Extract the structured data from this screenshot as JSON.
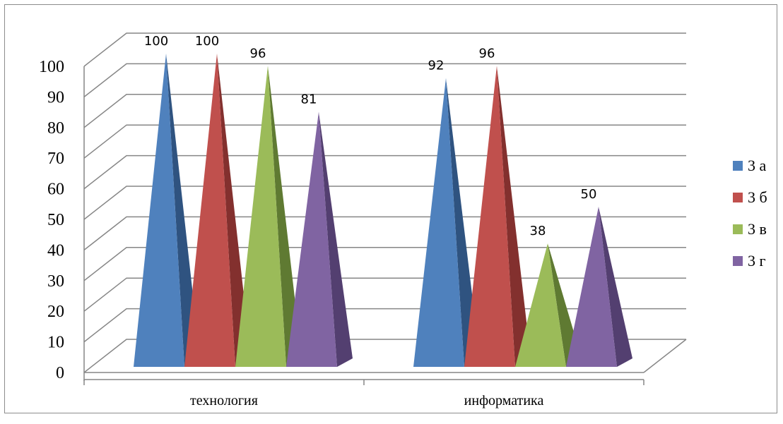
{
  "chart_data": {
    "type": "bar",
    "subtype": "3d-pyramid",
    "categories": [
      "технология",
      "информатика"
    ],
    "series": [
      {
        "name": "3 а",
        "values": [
          100,
          92
        ],
        "color": "#4f81bd",
        "shade": "#2f5380"
      },
      {
        "name": "3 б",
        "values": [
          100,
          96
        ],
        "color": "#c0504d",
        "shade": "#83302e"
      },
      {
        "name": "3 в",
        "values": [
          96,
          38
        ],
        "color": "#9bbb59",
        "shade": "#5f7a32"
      },
      {
        "name": "3 г",
        "values": [
          81,
          50
        ],
        "color": "#8064a2",
        "shade": "#533f70"
      }
    ],
    "ylim": [
      0,
      100
    ],
    "yticks": [
      0,
      10,
      20,
      30,
      40,
      50,
      60,
      70,
      80,
      90,
      100
    ],
    "grid": true,
    "legend": "right",
    "data_labels": true,
    "title": "",
    "xlabel": "",
    "ylabel": ""
  }
}
